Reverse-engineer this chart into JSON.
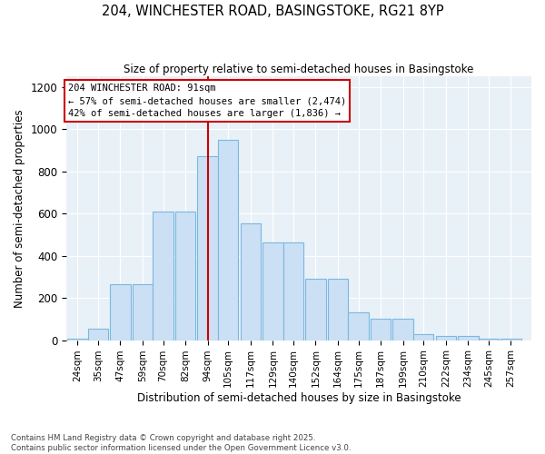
{
  "title1": "204, WINCHESTER ROAD, BASINGSTOKE, RG21 8YP",
  "title2": "Size of property relative to semi-detached houses in Basingstoke",
  "xlabel": "Distribution of semi-detached houses by size in Basingstoke",
  "ylabel": "Number of semi-detached properties",
  "annotation_line1": "204 WINCHESTER ROAD: 91sqm",
  "annotation_line2": "← 57% of semi-detached houses are smaller (2,474)",
  "annotation_line3": "42% of semi-detached houses are larger (1,836) →",
  "tick_labels": [
    "24sqm",
    "35sqm",
    "47sqm",
    "59sqm",
    "70sqm",
    "82sqm",
    "94sqm",
    "105sqm",
    "117sqm",
    "129sqm",
    "140sqm",
    "152sqm",
    "164sqm",
    "175sqm",
    "187sqm",
    "199sqm",
    "210sqm",
    "222sqm",
    "234sqm",
    "245sqm",
    "257sqm"
  ],
  "tick_positions": [
    24,
    35,
    47,
    59,
    70,
    82,
    94,
    105,
    117,
    129,
    140,
    152,
    164,
    175,
    187,
    199,
    210,
    222,
    234,
    245,
    257
  ],
  "bar_heights": [
    8,
    55,
    265,
    265,
    610,
    610,
    870,
    950,
    555,
    465,
    465,
    290,
    290,
    130,
    100,
    100,
    30,
    20,
    20,
    5,
    5
  ],
  "bar_color": "#cce0f5",
  "bar_edge_color": "#7ab8e0",
  "bg_color": "#e8f0f8",
  "red_line_x": 94,
  "ylim": [
    0,
    1250
  ],
  "yticks": [
    0,
    200,
    400,
    600,
    800,
    1000,
    1200
  ],
  "footer": "Contains HM Land Registry data © Crown copyright and database right 2025.\nContains public sector information licensed under the Open Government Licence v3.0."
}
